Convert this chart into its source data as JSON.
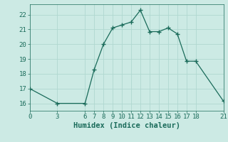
{
  "xlabel": "Humidex (Indice chaleur)",
  "x": [
    0,
    3,
    6,
    7,
    8,
    9,
    10,
    11,
    12,
    13,
    14,
    15,
    16,
    17,
    18,
    21
  ],
  "y": [
    17,
    16,
    16,
    18.3,
    20,
    21.1,
    21.3,
    21.5,
    22.3,
    20.85,
    20.85,
    21.1,
    20.7,
    18.85,
    18.85,
    16.15
  ],
  "line_color": "#1a6b5a",
  "marker": "+",
  "marker_size": 4,
  "marker_lw": 1.0,
  "line_width": 0.9,
  "bg_color": "#cceae4",
  "grid_color": "#b0d8d0",
  "xlim": [
    0,
    21
  ],
  "ylim": [
    15.5,
    22.7
  ],
  "xticks": [
    0,
    3,
    6,
    7,
    8,
    9,
    10,
    11,
    12,
    13,
    14,
    15,
    16,
    17,
    18,
    21
  ],
  "yticks": [
    16,
    17,
    18,
    19,
    20,
    21,
    22
  ],
  "tick_fontsize": 6.5,
  "label_fontsize": 7.5
}
